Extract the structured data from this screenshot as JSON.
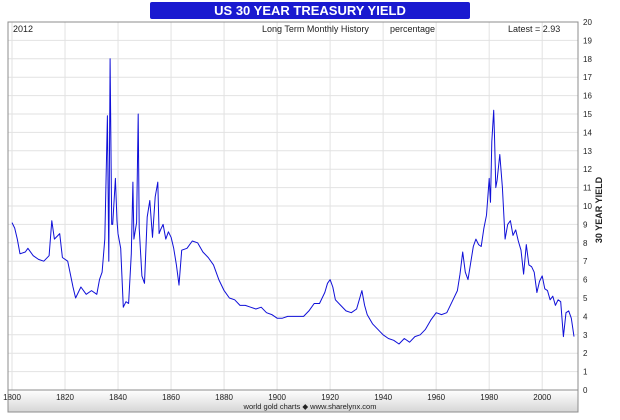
{
  "header": {
    "year_label": "2012",
    "subtitle": "Long Term Monthly History",
    "unit_label": "percentage",
    "latest_label": "Latest = 2.93"
  },
  "footer": {
    "credit": "world gold charts ◆ www.sharelynx.com"
  },
  "colors": {
    "title_band": "#1a1ad0",
    "title_text": "#ffffff",
    "line": "#1010d8",
    "grid": "#e2e2e2",
    "frame": "#8c8c8c",
    "bottom_band": "#e9e9e9"
  },
  "chart_data": {
    "type": "line",
    "title": "US 30 YEAR TREASURY YIELD",
    "ylabel": "30 YEAR YIELD",
    "xlabel": "",
    "xlim": [
      1800,
      2012
    ],
    "ylim": [
      0,
      20
    ],
    "x_ticks": [
      1800,
      1820,
      1840,
      1860,
      1880,
      1900,
      1920,
      1940,
      1960,
      1980,
      2000
    ],
    "y_ticks": [
      0,
      1,
      2,
      3,
      4,
      5,
      6,
      7,
      8,
      9,
      10,
      11,
      12,
      13,
      14,
      15,
      16,
      17,
      18,
      19,
      20
    ],
    "grid": true,
    "series": [
      {
        "points": [
          [
            1800,
            9.1
          ],
          [
            1801,
            8.8
          ],
          [
            1802,
            8.2
          ],
          [
            1803,
            7.4
          ],
          [
            1805,
            7.5
          ],
          [
            1806,
            7.7
          ],
          [
            1808,
            7.3
          ],
          [
            1810,
            7.1
          ],
          [
            1812,
            7.0
          ],
          [
            1814,
            7.3
          ],
          [
            1815,
            9.2
          ],
          [
            1816,
            8.2
          ],
          [
            1818,
            8.5
          ],
          [
            1819,
            7.2
          ],
          [
            1821,
            7.0
          ],
          [
            1823,
            5.6
          ],
          [
            1824,
            5.0
          ],
          [
            1826,
            5.6
          ],
          [
            1828,
            5.2
          ],
          [
            1830,
            5.4
          ],
          [
            1832,
            5.2
          ],
          [
            1833,
            6.0
          ],
          [
            1834,
            6.4
          ],
          [
            1835,
            8.2
          ],
          [
            1836,
            14.9
          ],
          [
            1836.5,
            7.0
          ],
          [
            1837,
            18.0
          ],
          [
            1837.6,
            9.0
          ],
          [
            1838,
            9.0
          ],
          [
            1839,
            11.5
          ],
          [
            1839.6,
            9.2
          ],
          [
            1840,
            8.5
          ],
          [
            1841,
            7.7
          ],
          [
            1842,
            4.5
          ],
          [
            1843,
            4.8
          ],
          [
            1844,
            4.7
          ],
          [
            1845,
            7.4
          ],
          [
            1845.6,
            11.3
          ],
          [
            1846,
            8.2
          ],
          [
            1847,
            9.1
          ],
          [
            1847.6,
            15.0
          ],
          [
            1848,
            8.8
          ],
          [
            1849,
            6.2
          ],
          [
            1850,
            5.8
          ],
          [
            1851,
            9.4
          ],
          [
            1852,
            10.3
          ],
          [
            1853,
            8.3
          ],
          [
            1854,
            10.5
          ],
          [
            1855,
            11.3
          ],
          [
            1855.5,
            8.5
          ],
          [
            1856,
            8.7
          ],
          [
            1857,
            9.0
          ],
          [
            1858,
            8.2
          ],
          [
            1859,
            8.6
          ],
          [
            1860,
            8.3
          ],
          [
            1861,
            7.7
          ],
          [
            1862,
            6.8
          ],
          [
            1863,
            5.7
          ],
          [
            1864,
            7.6
          ],
          [
            1866,
            7.7
          ],
          [
            1868,
            8.1
          ],
          [
            1870,
            8.0
          ],
          [
            1872,
            7.5
          ],
          [
            1874,
            7.2
          ],
          [
            1876,
            6.8
          ],
          [
            1878,
            6.0
          ],
          [
            1880,
            5.4
          ],
          [
            1882,
            5.0
          ],
          [
            1884,
            4.9
          ],
          [
            1886,
            4.6
          ],
          [
            1888,
            4.6
          ],
          [
            1890,
            4.5
          ],
          [
            1892,
            4.4
          ],
          [
            1894,
            4.5
          ],
          [
            1896,
            4.2
          ],
          [
            1898,
            4.1
          ],
          [
            1900,
            3.9
          ],
          [
            1902,
            3.9
          ],
          [
            1904,
            4.0
          ],
          [
            1906,
            4.0
          ],
          [
            1908,
            4.0
          ],
          [
            1910,
            4.0
          ],
          [
            1912,
            4.3
          ],
          [
            1914,
            4.7
          ],
          [
            1916,
            4.7
          ],
          [
            1918,
            5.3
          ],
          [
            1919,
            5.8
          ],
          [
            1920,
            6.0
          ],
          [
            1921,
            5.6
          ],
          [
            1922,
            4.9
          ],
          [
            1924,
            4.6
          ],
          [
            1926,
            4.3
          ],
          [
            1928,
            4.2
          ],
          [
            1930,
            4.4
          ],
          [
            1932,
            5.4
          ],
          [
            1933,
            4.6
          ],
          [
            1934,
            4.1
          ],
          [
            1936,
            3.6
          ],
          [
            1938,
            3.3
          ],
          [
            1940,
            3.0
          ],
          [
            1942,
            2.8
          ],
          [
            1944,
            2.7
          ],
          [
            1946,
            2.5
          ],
          [
            1948,
            2.8
          ],
          [
            1950,
            2.6
          ],
          [
            1952,
            2.9
          ],
          [
            1954,
            3.0
          ],
          [
            1956,
            3.3
          ],
          [
            1958,
            3.8
          ],
          [
            1960,
            4.2
          ],
          [
            1962,
            4.1
          ],
          [
            1964,
            4.2
          ],
          [
            1966,
            4.8
          ],
          [
            1968,
            5.4
          ],
          [
            1969,
            6.3
          ],
          [
            1970,
            7.5
          ],
          [
            1971,
            6.4
          ],
          [
            1972,
            6.0
          ],
          [
            1974,
            7.8
          ],
          [
            1975,
            8.2
          ],
          [
            1976,
            7.9
          ],
          [
            1977,
            7.8
          ],
          [
            1978,
            8.8
          ],
          [
            1979,
            9.5
          ],
          [
            1980,
            11.5
          ],
          [
            1980.5,
            10.2
          ],
          [
            1981,
            13.5
          ],
          [
            1981.7,
            15.2
          ],
          [
            1982,
            13.8
          ],
          [
            1982.5,
            11.0
          ],
          [
            1983,
            11.4
          ],
          [
            1984,
            12.8
          ],
          [
            1985,
            11.0
          ],
          [
            1986,
            8.2
          ],
          [
            1987,
            9.0
          ],
          [
            1988,
            9.2
          ],
          [
            1989,
            8.4
          ],
          [
            1990,
            8.7
          ],
          [
            1991,
            8.1
          ],
          [
            1992,
            7.6
          ],
          [
            1993,
            6.3
          ],
          [
            1994,
            7.9
          ],
          [
            1995,
            6.8
          ],
          [
            1996,
            6.7
          ],
          [
            1997,
            6.4
          ],
          [
            1998,
            5.3
          ],
          [
            1999,
            5.9
          ],
          [
            2000,
            6.2
          ],
          [
            2001,
            5.5
          ],
          [
            2002,
            5.4
          ],
          [
            2003,
            4.9
          ],
          [
            2004,
            5.1
          ],
          [
            2005,
            4.6
          ],
          [
            2006,
            4.9
          ],
          [
            2007,
            4.8
          ],
          [
            2008,
            2.9
          ],
          [
            2009,
            4.2
          ],
          [
            2010,
            4.3
          ],
          [
            2011,
            3.9
          ],
          [
            2012,
            2.9
          ]
        ]
      }
    ]
  }
}
